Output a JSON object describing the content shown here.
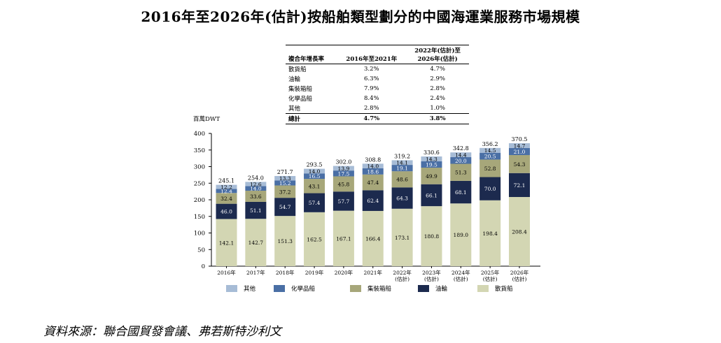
{
  "title": "2016年至2026年(估計)按船舶類型劃分的中國海運業服務市場規模",
  "cagr_table": {
    "headers": [
      "複合年增長率",
      "2016年至2021年",
      "2022年(估計)至\n2026年(估計)"
    ],
    "rows": [
      [
        "散貨船",
        "3.2%",
        "4.7%"
      ],
      [
        "油輪",
        "6.3%",
        "2.9%"
      ],
      [
        "集裝箱船",
        "7.9%",
        "2.8%"
      ],
      [
        "化學品船",
        "8.4%",
        "2.4%"
      ],
      [
        "其他",
        "2.8%",
        "1.0%"
      ]
    ],
    "total": [
      "總計",
      "4.7%",
      "3.8%"
    ]
  },
  "chart_data": {
    "type": "bar",
    "stacked": true,
    "ylabel": "百萬DWT",
    "ylim": [
      0,
      400
    ],
    "yticks": [
      0,
      50,
      100,
      150,
      200,
      250,
      300,
      350,
      400
    ],
    "categories": [
      [
        "2016年"
      ],
      [
        "2017年"
      ],
      [
        "2018年"
      ],
      [
        "2019年"
      ],
      [
        "2020年"
      ],
      [
        "2021年"
      ],
      [
        "2022年",
        "(估計)"
      ],
      [
        "2023年",
        "(估計)"
      ],
      [
        "2024年",
        "(估計)"
      ],
      [
        "2025年",
        "(估計)"
      ],
      [
        "2026年",
        "(估計)"
      ]
    ],
    "series": [
      {
        "name": "散貨船",
        "color": "#d3d6b3",
        "text_color": "#000000",
        "values": [
          142.1,
          142.7,
          151.3,
          162.5,
          167.1,
          166.4,
          173.1,
          180.8,
          189.0,
          198.4,
          208.4
        ]
      },
      {
        "name": "油輪",
        "color": "#1c2a4e",
        "text_color": "#ffffff",
        "values": [
          46.0,
          51.1,
          54.7,
          57.4,
          57.7,
          62.4,
          64.3,
          66.1,
          68.1,
          70.0,
          72.1
        ]
      },
      {
        "name": "集裝箱船",
        "color": "#a7a77a",
        "text_color": "#000000",
        "values": [
          32.4,
          33.6,
          37.2,
          43.1,
          45.8,
          47.4,
          48.6,
          49.9,
          51.3,
          52.8,
          54.3
        ]
      },
      {
        "name": "化學品船",
        "color": "#4a6fa5",
        "text_color": "#ffffff",
        "values": [
          12.4,
          14.0,
          15.2,
          16.5,
          17.5,
          18.6,
          19.1,
          19.5,
          20.0,
          20.5,
          21.0
        ]
      },
      {
        "name": "其他",
        "color": "#a7bcd6",
        "text_color": "#000000",
        "values": [
          12.2,
          12.6,
          13.3,
          14.0,
          13.9,
          14.0,
          14.1,
          14.3,
          14.4,
          14.5,
          14.7
        ]
      }
    ],
    "totals": [
      245.1,
      254.0,
      271.7,
      293.5,
      302.0,
      308.8,
      319.2,
      330.6,
      342.8,
      356.2,
      370.5
    ],
    "legend_order": [
      "其他",
      "化學品船",
      "集裝箱船",
      "油輪",
      "散貨船"
    ],
    "legend_position": "bottom",
    "grid": false
  },
  "source": "資料來源：聯合國貿發會議、弗若斯特沙利文"
}
